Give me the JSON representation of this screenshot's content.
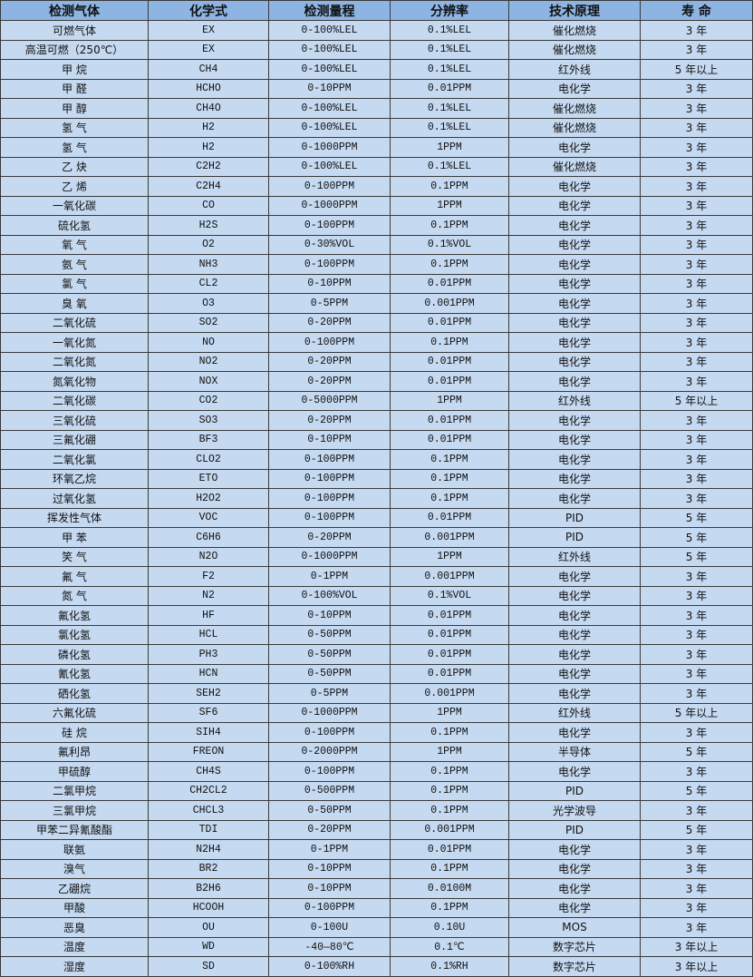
{
  "columns": [
    "检测气体",
    "化学式",
    "检测量程",
    "分辨率",
    "技术原理",
    "寿 命"
  ],
  "rows": [
    [
      "可燃气体",
      "EX",
      "0-100%LEL",
      "0.1%LEL",
      "催化燃烧",
      "3 年"
    ],
    [
      "高温可燃（250℃）",
      "EX",
      "0-100%LEL",
      "0.1%LEL",
      "催化燃烧",
      "3 年"
    ],
    [
      "甲 烷",
      "CH4",
      "0-100%LEL",
      "0.1%LEL",
      "红外线",
      "5 年以上"
    ],
    [
      "甲 醛",
      "HCHO",
      "0-10PPM",
      "0.01PPM",
      "电化学",
      "3 年"
    ],
    [
      "甲 醇",
      "CH4O",
      "0-100%LEL",
      "0.1%LEL",
      "催化燃烧",
      "3 年"
    ],
    [
      "氢 气",
      "H2",
      "0-100%LEL",
      "0.1%LEL",
      "催化燃烧",
      "3 年"
    ],
    [
      "氢 气",
      "H2",
      "0-1000PPM",
      "1PPM",
      "电化学",
      "3 年"
    ],
    [
      "乙 炔",
      "C2H2",
      "0-100%LEL",
      "0.1%LEL",
      "催化燃烧",
      "3 年"
    ],
    [
      "乙 烯",
      "C2H4",
      "0-100PPM",
      "0.1PPM",
      "电化学",
      "3 年"
    ],
    [
      "一氧化碳",
      "CO",
      "0-1000PPM",
      "1PPM",
      "电化学",
      "3 年"
    ],
    [
      "硫化氢",
      "H2S",
      "0-100PPM",
      "0.1PPM",
      "电化学",
      "3 年"
    ],
    [
      "氧 气",
      "O2",
      "0-30%VOL",
      "0.1%VOL",
      "电化学",
      "3 年"
    ],
    [
      "氨 气",
      "NH3",
      "0-100PPM",
      "0.1PPM",
      "电化学",
      "3 年"
    ],
    [
      "氯 气",
      "CL2",
      "0-10PPM",
      "0.01PPM",
      "电化学",
      "3 年"
    ],
    [
      "臭 氧",
      "O3",
      "0-5PPM",
      "0.001PPM",
      "电化学",
      "3 年"
    ],
    [
      "二氧化硫",
      "SO2",
      "0-20PPM",
      "0.01PPM",
      "电化学",
      "3 年"
    ],
    [
      "一氧化氮",
      "NO",
      "0-100PPM",
      "0.1PPM",
      "电化学",
      "3 年"
    ],
    [
      "二氧化氮",
      "NO2",
      "0-20PPM",
      "0.01PPM",
      "电化学",
      "3 年"
    ],
    [
      "氮氧化物",
      "NOX",
      "0-20PPM",
      "0.01PPM",
      "电化学",
      "3 年"
    ],
    [
      "二氧化碳",
      "CO2",
      "0-5000PPM",
      "1PPM",
      "红外线",
      "5 年以上"
    ],
    [
      "三氧化硫",
      "SO3",
      "0-20PPM",
      "0.01PPM",
      "电化学",
      "3 年"
    ],
    [
      "三氟化硼",
      "BF3",
      "0-10PPM",
      "0.01PPM",
      "电化学",
      "3 年"
    ],
    [
      "二氧化氯",
      "CLO2",
      "0-100PPM",
      "0.1PPM",
      "电化学",
      "3 年"
    ],
    [
      "环氧乙烷",
      "ETO",
      "0-100PPM",
      "0.1PPM",
      "电化学",
      "3 年"
    ],
    [
      "过氧化氢",
      "H2O2",
      "0-100PPM",
      "0.1PPM",
      "电化学",
      "3 年"
    ],
    [
      "挥发性气体",
      "VOC",
      "0-100PPM",
      "0.01PPM",
      "PID",
      "5 年"
    ],
    [
      "甲 苯",
      "C6H6",
      "0-20PPM",
      "0.001PPM",
      "PID",
      "5 年"
    ],
    [
      "笑 气",
      "N2O",
      "0-1000PPM",
      "1PPM",
      "红外线",
      "5 年"
    ],
    [
      "氟 气",
      "F2",
      "0-1PPM",
      "0.001PPM",
      "电化学",
      "3 年"
    ],
    [
      "氮 气",
      "N2",
      "0-100%VOL",
      "0.1%VOL",
      "电化学",
      "3 年"
    ],
    [
      "氟化氢",
      "HF",
      "0-10PPM",
      "0.01PPM",
      "电化学",
      "3 年"
    ],
    [
      "氯化氢",
      "HCL",
      "0-50PPM",
      "0.01PPM",
      "电化学",
      "3 年"
    ],
    [
      "磷化氢",
      "PH3",
      "0-50PPM",
      "0.01PPM",
      "电化学",
      "3 年"
    ],
    [
      "氰化氢",
      "HCN",
      "0-50PPM",
      "0.01PPM",
      "电化学",
      "3 年"
    ],
    [
      "硒化氢",
      "SEH2",
      "0-5PPM",
      "0.001PPM",
      "电化学",
      "3 年"
    ],
    [
      "六氟化硫",
      "SF6",
      "0-1000PPM",
      "1PPM",
      "红外线",
      "5 年以上"
    ],
    [
      "硅 烷",
      "SIH4",
      "0-100PPM",
      "0.1PPM",
      "电化学",
      "3 年"
    ],
    [
      "氟利昂",
      "FREON",
      "0-2000PPM",
      "1PPM",
      "半导体",
      "5 年"
    ],
    [
      "甲硫醇",
      "CH4S",
      "0-100PPM",
      "0.1PPM",
      "电化学",
      "3 年"
    ],
    [
      "二氯甲烷",
      "CH2CL2",
      "0-500PPM",
      "0.1PPM",
      "PID",
      "5 年"
    ],
    [
      "三氯甲烷",
      "CHCL3",
      "0-50PPM",
      "0.1PPM",
      "光学波导",
      "3 年"
    ],
    [
      "甲苯二异氰酸酯",
      "TDI",
      "0-20PPM",
      "0.001PPM",
      "PID",
      "5 年"
    ],
    [
      "联氨",
      "N2H4",
      "0-1PPM",
      "0.01PPM",
      "电化学",
      "3 年"
    ],
    [
      "溴气",
      "BR2",
      "0-10PPM",
      "0.1PPM",
      "电化学",
      "3 年"
    ],
    [
      "乙硼烷",
      "B2H6",
      "0-10PPM",
      "0.0100M",
      "电化学",
      "3 年"
    ],
    [
      "甲酸",
      "HCOOH",
      "0-100PPM",
      "0.1PPM",
      "电化学",
      "3 年"
    ],
    [
      "恶臭",
      "OU",
      "0-100U",
      "0.10U",
      "MOS",
      "3 年"
    ],
    [
      "温度",
      "WD",
      "-40—80℃",
      "0.1℃",
      "数字芯片",
      "3 年以上"
    ],
    [
      "湿度",
      "SD",
      "0-100%RH",
      "0.1%RH",
      "数字芯片",
      "3 年以上"
    ]
  ]
}
